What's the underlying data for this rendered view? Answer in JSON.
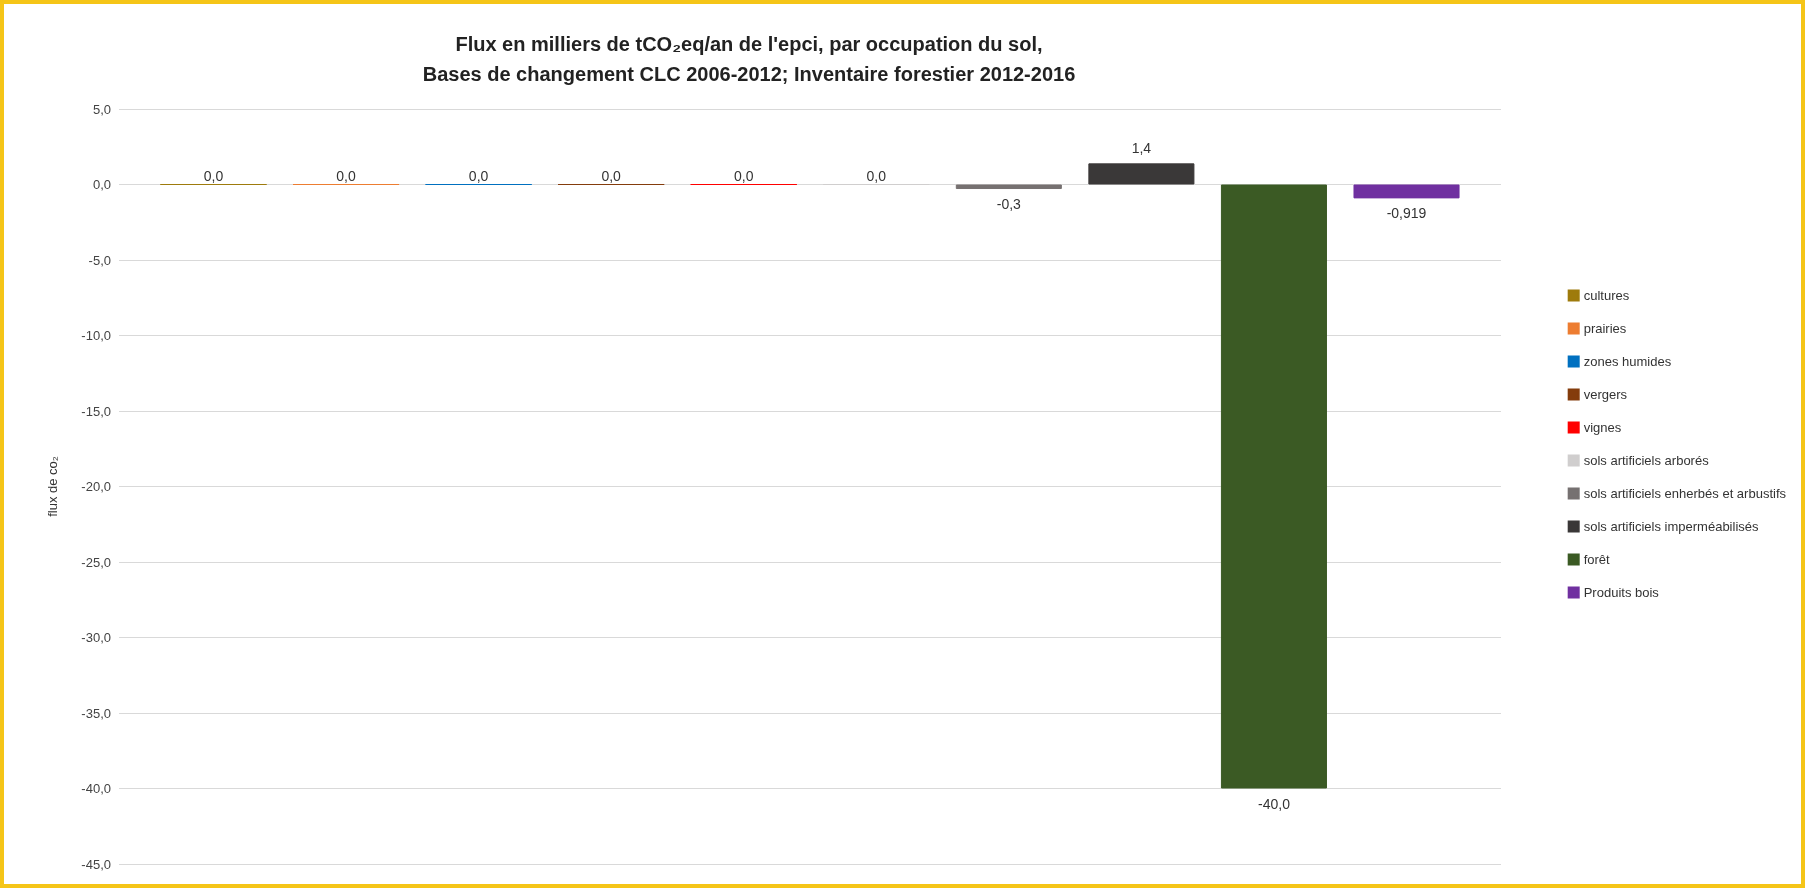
{
  "chart_data": {
    "type": "bar",
    "title": "Flux en milliers de tCO₂eq/an de l'epci, par occupation du sol,\nBases de changement CLC 2006-2012; Inventaire forestier 2012-2016",
    "ylabel": "flux de co₂",
    "categories": [
      null
    ],
    "series": [
      {
        "name": "cultures",
        "color": "#9e7b0c",
        "values": [
          0
        ],
        "value_labels": [
          "0,0"
        ]
      },
      {
        "name": "prairies",
        "color": "#ed7d31",
        "values": [
          0
        ],
        "value_labels": [
          "0,0"
        ]
      },
      {
        "name": "zones humides",
        "color": "#0070c0",
        "values": [
          0
        ],
        "value_labels": [
          "0,0"
        ]
      },
      {
        "name": "vergers",
        "color": "#843c0c",
        "values": [
          0
        ],
        "value_labels": [
          "0,0"
        ]
      },
      {
        "name": "vignes",
        "color": "#ff0000",
        "values": [
          0
        ],
        "value_labels": [
          "0,0"
        ]
      },
      {
        "name": "sols artificiels arborés",
        "color": "#d0cece",
        "values": [
          0
        ],
        "value_labels": [
          "0,0"
        ]
      },
      {
        "name": "sols artificiels enherbés et arbustifs",
        "color": "#767171",
        "values": [
          -0.3
        ],
        "value_labels": [
          "-0,3"
        ]
      },
      {
        "name": "sols artificiels imperméabilisés",
        "color": "#3a3838",
        "values": [
          1.4
        ],
        "value_labels": [
          "1,4"
        ]
      },
      {
        "name": "forêt",
        "color": "#3b5a24",
        "values": [
          -40.0
        ],
        "value_labels": [
          "-40,0"
        ]
      },
      {
        "name": "Produits bois",
        "color": "#7030a0",
        "values": [
          -0.919
        ],
        "value_labels": [
          "-0,919"
        ]
      }
    ],
    "ylim": [
      -45,
      5
    ],
    "yticks": [
      {
        "value": -45,
        "label": "-45,0"
      },
      {
        "value": -40,
        "label": "-40,0"
      },
      {
        "value": -35,
        "label": "-35,0"
      },
      {
        "value": -30,
        "label": "-30,0"
      },
      {
        "value": -25,
        "label": "-25,0"
      },
      {
        "value": -20,
        "label": "-20,0"
      },
      {
        "value": -15,
        "label": "-15,0"
      },
      {
        "value": -10,
        "label": "-10,0"
      },
      {
        "value": -5,
        "label": "-5,0"
      },
      {
        "value": 0,
        "label": "0,0"
      },
      {
        "value": 5,
        "label": "5,0"
      }
    ],
    "grid": "y",
    "legend": "right"
  }
}
